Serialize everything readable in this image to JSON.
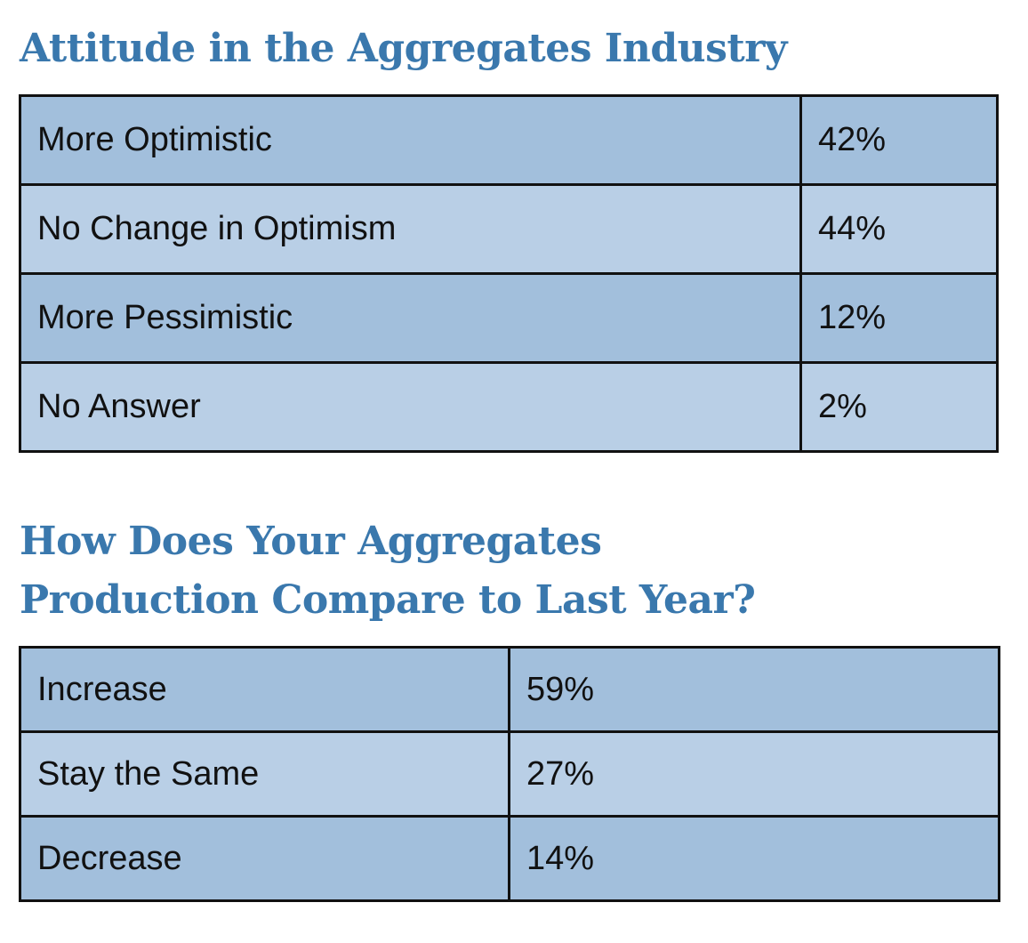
{
  "colors": {
    "title": "#3a78ad",
    "row_dark": "#a2bfdc",
    "row_light": "#b9cfe6",
    "border": "#111111"
  },
  "chart_data": [
    {
      "type": "table",
      "title": "Attitude in the Aggregates Industry",
      "categories": [
        "More Optimistic",
        "No Change in Optimism",
        "More Pessimistic",
        "No Answer"
      ],
      "values": [
        42,
        44,
        12,
        2
      ],
      "value_labels": [
        "42%",
        "44%",
        "12%",
        "2%"
      ]
    },
    {
      "type": "table",
      "title_lines": [
        "How Does Your Aggregates",
        "Production Compare to Last Year?"
      ],
      "categories": [
        "Increase",
        "Stay the Same",
        "Decrease"
      ],
      "values": [
        59,
        27,
        14
      ],
      "value_labels": [
        "59%",
        "27%",
        "14%"
      ]
    }
  ]
}
